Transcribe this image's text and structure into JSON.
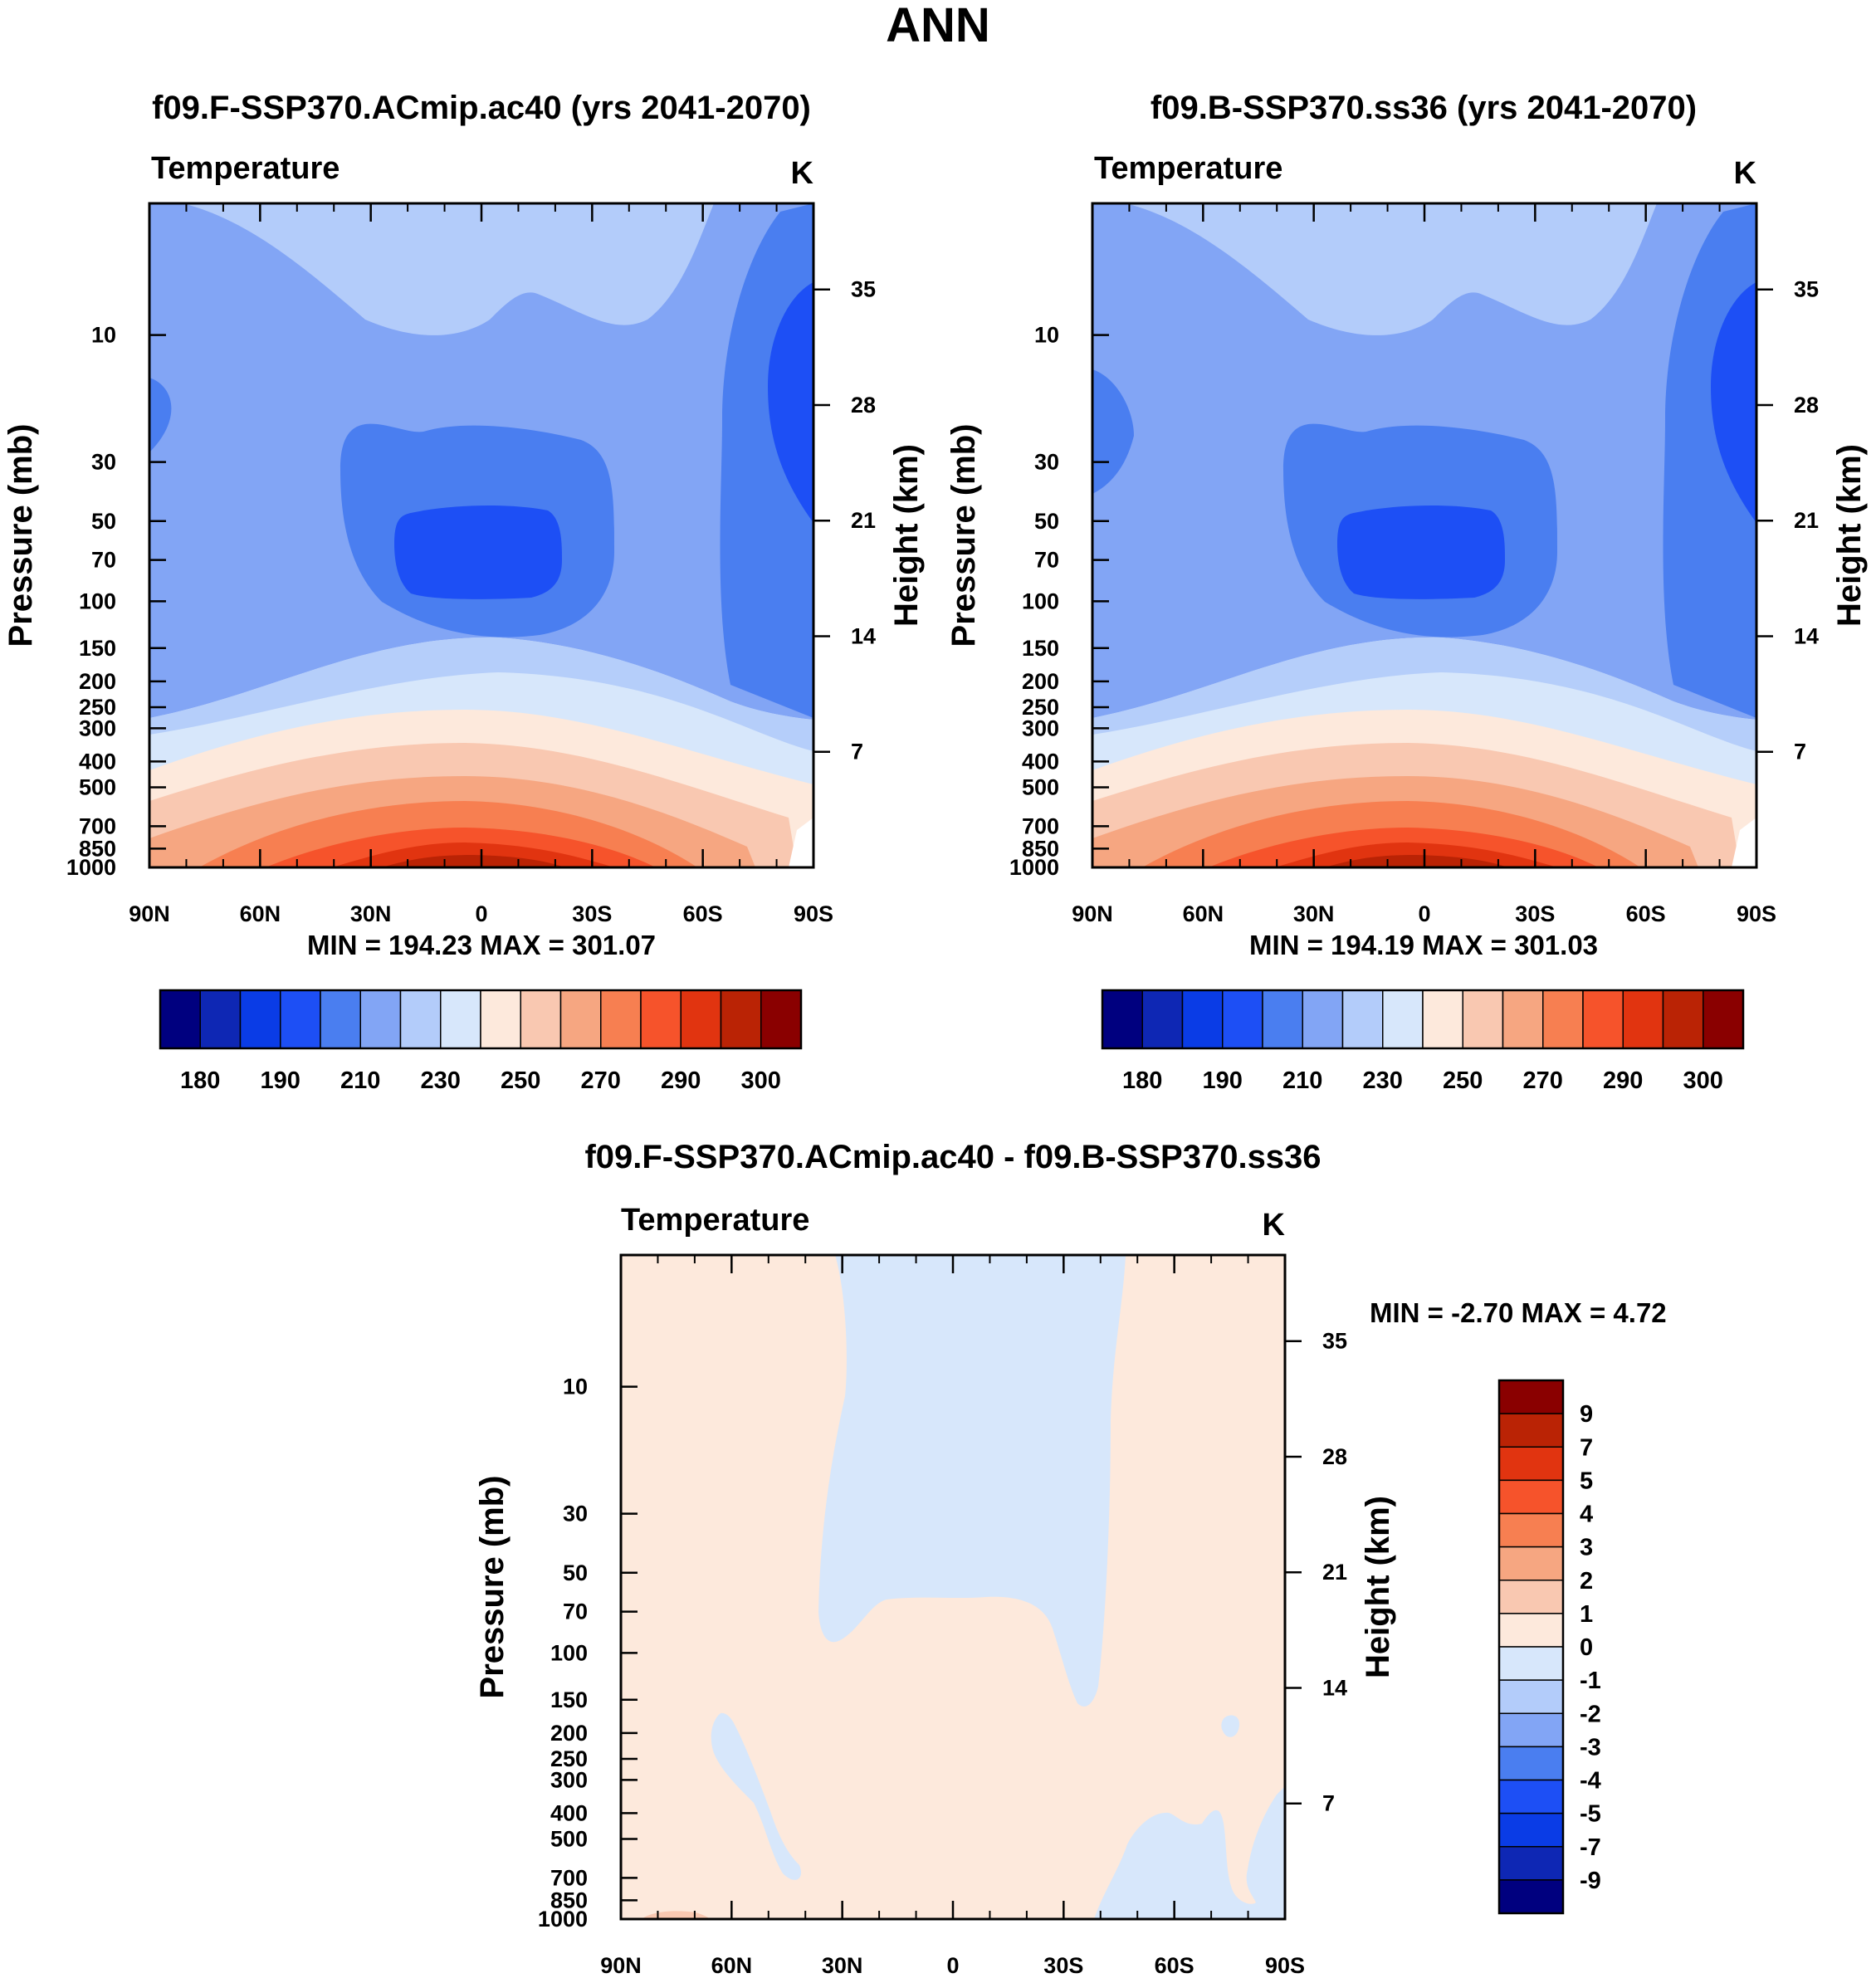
{
  "figure": {
    "title": "ANN"
  },
  "chart_data": [
    {
      "type": "heatmap",
      "title": "f09.F-SSP370.ACmip.ac40 (yrs 2041-2070)",
      "variable": "Temperature",
      "units": "K",
      "ylabel": "Pressure (mb)",
      "ylabel_right": "Height (km)",
      "x_ticks": [
        "90N",
        "60N",
        "30N",
        "0",
        "30S",
        "60S",
        "90S"
      ],
      "y_ticks": [
        "10",
        "30",
        "50",
        "70",
        "100",
        "150",
        "200",
        "250",
        "300",
        "400",
        "500",
        "700",
        "850",
        "1000"
      ],
      "height_ticks": [
        "35",
        "28",
        "21",
        "14",
        "7"
      ],
      "stats": "MIN = 194.23  MAX = 301.07",
      "colorbar_labels": [
        "180",
        "190",
        "210",
        "230",
        "250",
        "270",
        "290",
        "300"
      ]
    },
    {
      "type": "heatmap",
      "title": "f09.B-SSP370.ss36 (yrs 2041-2070)",
      "variable": "Temperature",
      "units": "K",
      "ylabel": "Pressure (mb)",
      "ylabel_right": "Height (km)",
      "x_ticks": [
        "90N",
        "60N",
        "30N",
        "0",
        "30S",
        "60S",
        "90S"
      ],
      "y_ticks": [
        "10",
        "30",
        "50",
        "70",
        "100",
        "150",
        "200",
        "250",
        "300",
        "400",
        "500",
        "700",
        "850",
        "1000"
      ],
      "height_ticks": [
        "35",
        "28",
        "21",
        "14",
        "7"
      ],
      "stats": "MIN = 194.19  MAX = 301.03",
      "colorbar_labels": [
        "180",
        "190",
        "210",
        "230",
        "250",
        "270",
        "290",
        "300"
      ]
    },
    {
      "type": "heatmap",
      "title": "f09.F-SSP370.ACmip.ac40 - f09.B-SSP370.ss36",
      "variable": "Temperature",
      "units": "K",
      "ylabel": "Pressure (mb)",
      "ylabel_right": "Height (km)",
      "x_ticks": [
        "90N",
        "60N",
        "30N",
        "0",
        "30S",
        "60S",
        "90S"
      ],
      "y_ticks": [
        "10",
        "30",
        "50",
        "70",
        "100",
        "150",
        "200",
        "250",
        "300",
        "400",
        "500",
        "700",
        "850",
        "1000"
      ],
      "height_ticks": [
        "35",
        "28",
        "21",
        "14",
        "7"
      ],
      "stats": "MIN =  -2.70  MAX =   4.72",
      "colorbar_labels": [
        "9",
        "7",
        "5",
        "4",
        "3",
        "2",
        "1",
        "0",
        "-1",
        "-2",
        "-3",
        "-4",
        "-5",
        "-7",
        "-9"
      ]
    }
  ],
  "colors": {
    "abs_scale": [
      "#00007f",
      "#0e27b4",
      "#0a3ce6",
      "#1d4ff5",
      "#4a7ef0",
      "#82a5f5",
      "#b3ccfa",
      "#d7e7fb",
      "#fde9dc",
      "#f9c8b1",
      "#f6a681",
      "#f77f51",
      "#f6532b",
      "#e13410",
      "#ba2305",
      "#8a0000"
    ],
    "diff_scale": [
      "#8a0000",
      "#ba2305",
      "#e13410",
      "#f6532b",
      "#f77f51",
      "#f6a681",
      "#f9c8b1",
      "#fde9dc",
      "#d7e7fb",
      "#b3ccfa",
      "#82a5f5",
      "#4a7ef0",
      "#1d4ff5",
      "#0a3ce6",
      "#0e27b4",
      "#00007f"
    ]
  }
}
